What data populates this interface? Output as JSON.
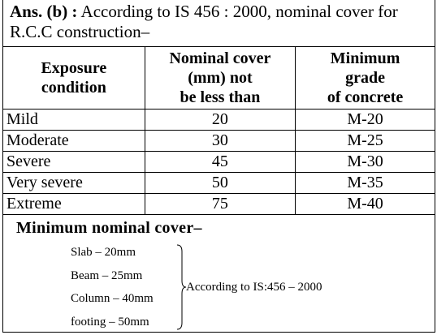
{
  "answer": {
    "label": "Ans. (b) :",
    "text": "According to IS 456 : 2000, nominal cover for R.C.C construction–"
  },
  "table": {
    "headers": [
      [
        "Exposure",
        "condition"
      ],
      [
        "Nominal cover",
        "(mm) not",
        "be less than"
      ],
      [
        "Minimum",
        "grade",
        "of concrete"
      ]
    ],
    "rows": [
      [
        "Mild",
        "20",
        "M-20"
      ],
      [
        "Moderate",
        "30",
        "M-25"
      ],
      [
        "Severe",
        "45",
        "M-30"
      ],
      [
        "Very severe",
        "50",
        "M-35"
      ],
      [
        "Extreme",
        "75",
        "M-40"
      ]
    ]
  },
  "summary": {
    "title": "Minimum nominal cover–",
    "items": [
      "Slab – 20mm",
      "Beam – 25mm",
      "Column – 40mm",
      "footing – 50mm"
    ],
    "note": "According to IS:456 – 2000"
  }
}
